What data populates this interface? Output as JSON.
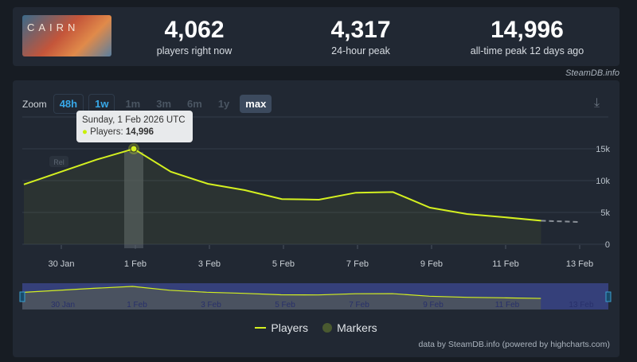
{
  "header": {
    "logo_text": "CAIRN",
    "stats": [
      {
        "value": "4,062",
        "label": "players right now"
      },
      {
        "value": "4,317",
        "label": "24-hour peak"
      },
      {
        "value": "14,996",
        "label": "all-time peak 12 days ago"
      }
    ],
    "credit": "SteamDB.info"
  },
  "zoom": {
    "label": "Zoom",
    "buttons": [
      "48h",
      "1w",
      "1m",
      "3m",
      "6m",
      "1y",
      "max"
    ],
    "selected": "max"
  },
  "tooltip": {
    "date": "Sunday, 1 Feb 2026 UTC",
    "series": "Players:",
    "value": "14,996"
  },
  "rel_label": "Rel",
  "legend": {
    "players": "Players",
    "markers": "Markers"
  },
  "footer": "data by SteamDB.info (powered by highcharts.com)",
  "colors": {
    "line": "#d4f020",
    "markers": "#4a5a30",
    "navigator_bg": "#35407a"
  },
  "chart_data": {
    "type": "line",
    "x_ticks": [
      "30 Jan",
      "1 Feb",
      "3 Feb",
      "5 Feb",
      "7 Feb",
      "9 Feb",
      "11 Feb",
      "13 Feb"
    ],
    "y_ticks": [
      "0",
      "5k",
      "10k",
      "15k"
    ],
    "ylim": [
      0,
      15000
    ],
    "series": [
      {
        "name": "Players",
        "points": [
          [
            "2026-01-29",
            9400
          ],
          [
            "2026-01-31",
            13300
          ],
          [
            "2026-02-01",
            14996
          ],
          [
            "2026-02-02",
            11400
          ],
          [
            "2026-02-03",
            9500
          ],
          [
            "2026-02-04",
            8500
          ],
          [
            "2026-02-05",
            7100
          ],
          [
            "2026-02-06",
            7000
          ],
          [
            "2026-02-07",
            8100
          ],
          [
            "2026-02-08",
            8200
          ],
          [
            "2026-02-09",
            5750
          ],
          [
            "2026-02-10",
            4750
          ],
          [
            "2026-02-11",
            4250
          ],
          [
            "2026-02-12",
            3700
          ]
        ],
        "projected": [
          [
            "2026-02-12",
            3700
          ],
          [
            "2026-02-13",
            3500
          ]
        ]
      }
    ]
  }
}
